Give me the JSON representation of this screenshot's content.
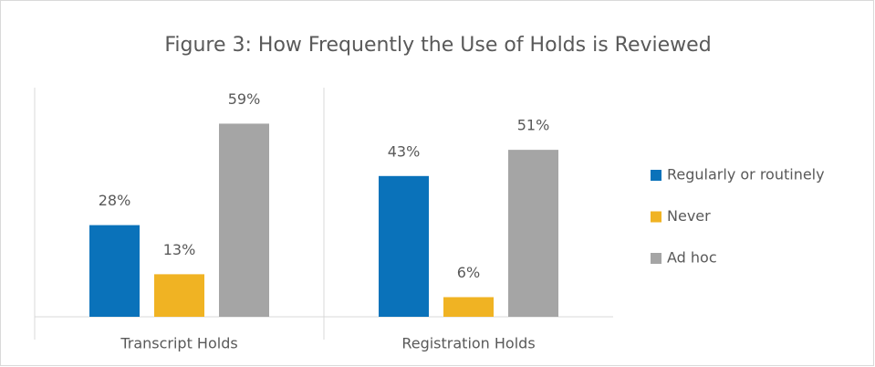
{
  "chart_data": {
    "type": "bar",
    "title": "Figure 3: How Frequently the Use of Holds is Reviewed",
    "categories": [
      "Transcript Holds",
      "Registration Holds"
    ],
    "series": [
      {
        "name": "Regularly or routinely",
        "color": "#0a72ba",
        "values": [
          28,
          43
        ],
        "value_labels": [
          "28%",
          "43%"
        ]
      },
      {
        "name": "Never",
        "color": "#f0b323",
        "values": [
          13,
          6
        ],
        "value_labels": [
          "13%",
          "6%"
        ]
      },
      {
        "name": "Ad hoc",
        "color": "#a5a5a5",
        "values": [
          59,
          51
        ],
        "value_labels": [
          "59%",
          "51%"
        ]
      }
    ],
    "ylim": [
      0,
      70
    ],
    "legend": "right"
  }
}
